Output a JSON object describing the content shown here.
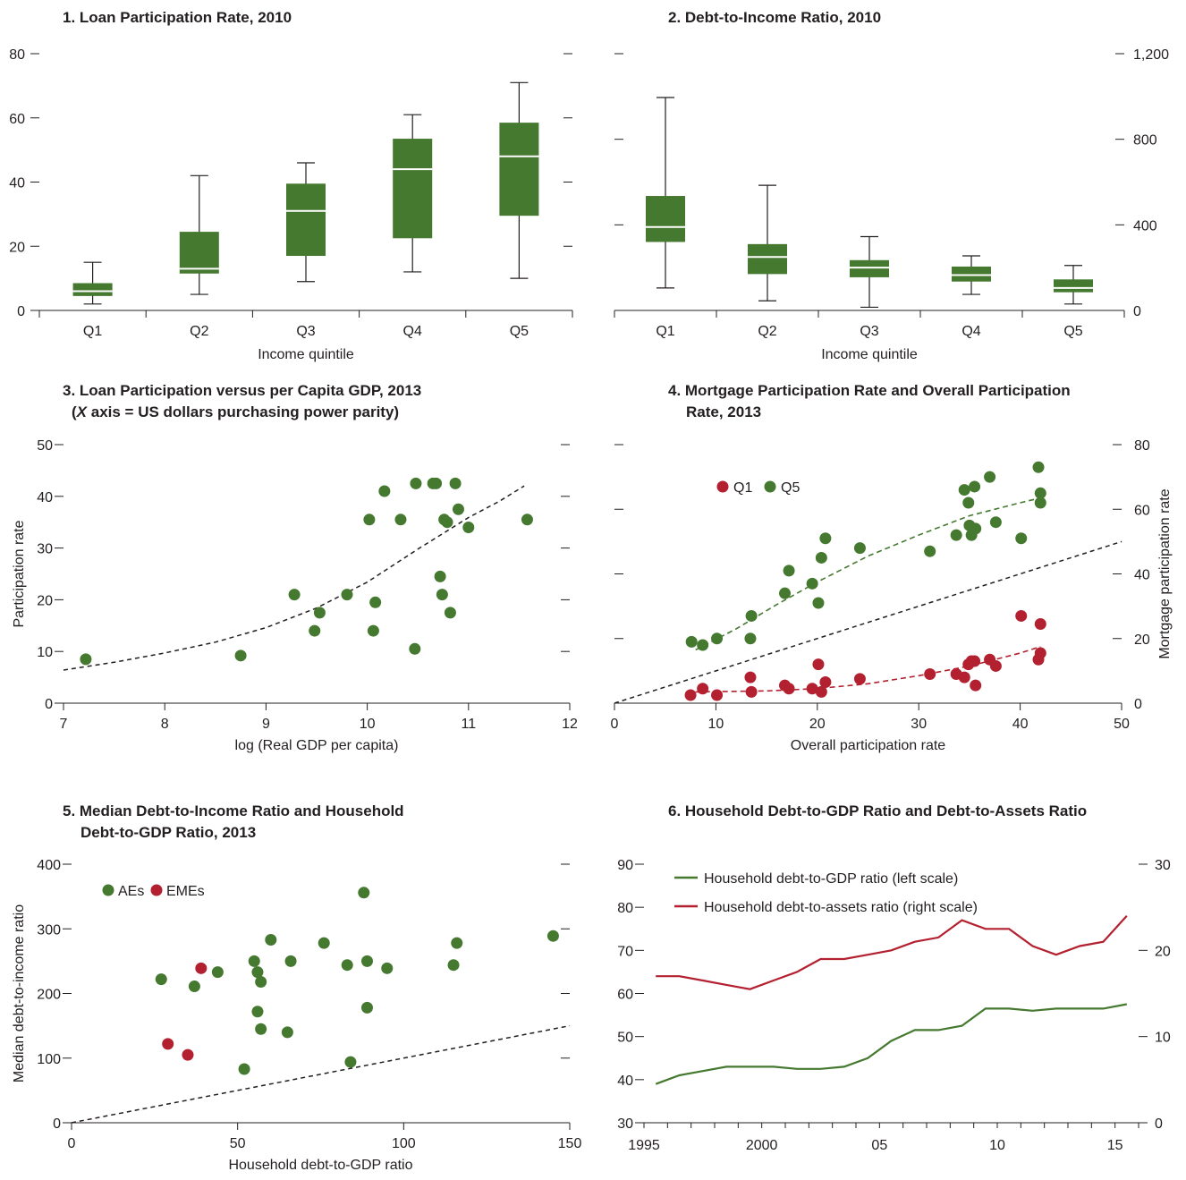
{
  "colors": {
    "green": "#44792f",
    "red": "#b3202f",
    "axis": "#231f20"
  },
  "chart_data": [
    {
      "id": "p1",
      "type": "box",
      "title": "1. Loan Participation Rate, 2010",
      "xlabel": "Income quintile",
      "ylim": [
        0,
        80
      ],
      "yticks": [
        "0",
        "20",
        "40",
        "60",
        "80"
      ],
      "categories": [
        "Q1",
        "Q2",
        "Q3",
        "Q4",
        "Q5"
      ],
      "boxes": [
        {
          "min": 2,
          "q1": 4.5,
          "median": 6,
          "q3": 8.5,
          "max": 15
        },
        {
          "min": 5,
          "q1": 11.5,
          "median": 13,
          "q3": 24.5,
          "max": 42
        },
        {
          "min": 9,
          "q1": 17,
          "median": 31,
          "q3": 39.5,
          "max": 46
        },
        {
          "min": 12,
          "q1": 22.5,
          "median": 44,
          "q3": 53.5,
          "max": 61
        },
        {
          "min": 10,
          "q1": 29.5,
          "median": 48,
          "q3": 58.5,
          "max": 71
        }
      ]
    },
    {
      "id": "p2",
      "type": "box",
      "title": "2. Debt-to-Income Ratio, 2010",
      "xlabel": "Income quintile",
      "ylim": [
        0,
        1200
      ],
      "yticks": [
        "0",
        "400",
        "800",
        "1,200"
      ],
      "categories": [
        "Q1",
        "Q2",
        "Q3",
        "Q4",
        "Q5"
      ],
      "boxes": [
        {
          "min": 105,
          "q1": 320,
          "median": 390,
          "q3": 535,
          "max": 995
        },
        {
          "min": 45,
          "q1": 170,
          "median": 250,
          "q3": 310,
          "max": 585
        },
        {
          "min": 15,
          "q1": 155,
          "median": 200,
          "q3": 235,
          "max": 345
        },
        {
          "min": 75,
          "q1": 135,
          "median": 165,
          "q3": 205,
          "max": 255
        },
        {
          "min": 30,
          "q1": 85,
          "median": 105,
          "q3": 145,
          "max": 210
        }
      ]
    },
    {
      "id": "p3",
      "type": "scatter",
      "title": "3. Loan Participation versus per Capita GDP, 2013",
      "title_line2_italic": "X",
      "title_line2": " axis = US dollars purchasing power parity)",
      "title_line2_prefix": "(",
      "xlabel": "log (Real GDP per capita)",
      "ylabel": "Participation rate",
      "xlim": [
        7,
        12
      ],
      "ylim": [
        0,
        50
      ],
      "xticks": [
        "7",
        "8",
        "9",
        "10",
        "11",
        "12"
      ],
      "yticks": [
        "0",
        "10",
        "20",
        "30",
        "40",
        "50"
      ],
      "points": [
        [
          7.22,
          8.5
        ],
        [
          8.75,
          9.2
        ],
        [
          9.28,
          21
        ],
        [
          9.48,
          14
        ],
        [
          9.53,
          17.5
        ],
        [
          9.8,
          21
        ],
        [
          10.02,
          35.5
        ],
        [
          10.06,
          14
        ],
        [
          10.08,
          19.5
        ],
        [
          10.17,
          41
        ],
        [
          10.33,
          35.5
        ],
        [
          10.47,
          10.5
        ],
        [
          10.48,
          42.5
        ],
        [
          10.65,
          42.5
        ],
        [
          10.68,
          42.5
        ],
        [
          10.72,
          24.5
        ],
        [
          10.74,
          21
        ],
        [
          10.76,
          35.5
        ],
        [
          10.79,
          35
        ],
        [
          10.82,
          17.5
        ],
        [
          10.87,
          42.5
        ],
        [
          10.9,
          37.5
        ],
        [
          11.0,
          34
        ],
        [
          11.58,
          35.5
        ]
      ],
      "trend": [
        [
          7,
          6.4
        ],
        [
          7.5,
          7.9
        ],
        [
          8,
          9.7
        ],
        [
          8.5,
          11.8
        ],
        [
          9,
          14.6
        ],
        [
          9.5,
          18.4
        ],
        [
          10,
          23.4
        ],
        [
          10.5,
          29.8
        ],
        [
          11,
          35.9
        ],
        [
          11.3,
          39.0
        ],
        [
          11.55,
          42.0
        ]
      ]
    },
    {
      "id": "p4",
      "type": "scatter",
      "title": "4. Mortgage Participation Rate and Overall Participation",
      "title_line2": "Rate, 2013",
      "xlabel": "Overall participation rate",
      "ylabel": "Mortgage participation rate",
      "xlim": [
        0,
        50
      ],
      "ylim": [
        0,
        80
      ],
      "xticks": [
        "0",
        "10",
        "20",
        "30",
        "40",
        "50"
      ],
      "yticks": [
        "0",
        "20",
        "40",
        "60",
        "80"
      ],
      "legend": [
        "Q1",
        "Q5"
      ],
      "series": [
        {
          "name": "Q1",
          "color": "red",
          "points": [
            [
              7.5,
              2.5
            ],
            [
              8.7,
              4.5
            ],
            [
              10.1,
              2.5
            ],
            [
              13.4,
              8
            ],
            [
              13.5,
              3.5
            ],
            [
              16.8,
              5.5
            ],
            [
              17.2,
              4.5
            ],
            [
              19.5,
              4.5
            ],
            [
              20.1,
              12
            ],
            [
              20.4,
              3.5
            ],
            [
              20.8,
              6.5
            ],
            [
              24.2,
              7.5
            ],
            [
              31.1,
              9
            ],
            [
              33.7,
              9
            ],
            [
              34.5,
              8
            ],
            [
              34.9,
              12
            ],
            [
              35.2,
              13
            ],
            [
              35.5,
              13
            ],
            [
              35.6,
              5.5
            ],
            [
              37.0,
              13.5
            ],
            [
              37.6,
              11.5
            ],
            [
              40.1,
              27
            ],
            [
              41.8,
              13.5
            ],
            [
              42.0,
              15.5
            ],
            [
              42.0,
              24.5
            ]
          ]
        },
        {
          "name": "Q5",
          "color": "green",
          "points": [
            [
              7.6,
              19
            ],
            [
              8.7,
              18
            ],
            [
              10.1,
              20
            ],
            [
              13.4,
              20
            ],
            [
              13.5,
              27
            ],
            [
              16.8,
              34
            ],
            [
              17.2,
              41
            ],
            [
              19.5,
              37
            ],
            [
              20.1,
              31
            ],
            [
              20.4,
              45
            ],
            [
              20.8,
              51
            ],
            [
              24.2,
              48
            ],
            [
              31.1,
              47
            ],
            [
              33.7,
              52
            ],
            [
              34.5,
              66
            ],
            [
              34.9,
              62
            ],
            [
              35.0,
              55
            ],
            [
              35.2,
              52
            ],
            [
              35.5,
              67
            ],
            [
              35.6,
              54
            ],
            [
              37.0,
              70
            ],
            [
              37.6,
              56
            ],
            [
              40.1,
              51
            ],
            [
              41.8,
              73
            ],
            [
              42.0,
              65
            ],
            [
              42.0,
              62
            ]
          ]
        }
      ],
      "trend_q5": [
        [
          8,
          16.5
        ],
        [
          12,
          23
        ],
        [
          16,
          30.5
        ],
        [
          20,
          37.5
        ],
        [
          25,
          45.5
        ],
        [
          30,
          52
        ],
        [
          35,
          58
        ],
        [
          40,
          62
        ],
        [
          42,
          63.5
        ]
      ],
      "trend_q1": [
        [
          8,
          3.5
        ],
        [
          15,
          3.8
        ],
        [
          20,
          4.5
        ],
        [
          25,
          6
        ],
        [
          30,
          8.5
        ],
        [
          35,
          11.5
        ],
        [
          40,
          15.5
        ],
        [
          42,
          17.5
        ]
      ],
      "reference": [
        [
          0,
          0
        ],
        [
          50,
          50
        ]
      ]
    },
    {
      "id": "p5",
      "type": "scatter",
      "title": "5. Median Debt-to-Income Ratio and Household",
      "title_line2": "Debt-to-GDP Ratio, 2013",
      "xlabel": "Household debt-to-GDP ratio",
      "ylabel": "Median debt-to-income ratio",
      "xlim": [
        0,
        150
      ],
      "ylim": [
        0,
        400
      ],
      "xticks": [
        "0",
        "50",
        "100",
        "150"
      ],
      "yticks": [
        "0",
        "100",
        "200",
        "300",
        "400"
      ],
      "legend": [
        "AEs",
        "EMEs"
      ],
      "series": [
        {
          "name": "AEs",
          "color": "green",
          "points": [
            [
              27,
              222
            ],
            [
              37,
              211
            ],
            [
              44,
              233
            ],
            [
              52,
              83
            ],
            [
              55,
              250
            ],
            [
              56,
              233
            ],
            [
              56,
              172
            ],
            [
              57,
              218
            ],
            [
              57,
              145
            ],
            [
              60,
              283
            ],
            [
              65,
              140
            ],
            [
              66,
              250
            ],
            [
              76,
              278
            ],
            [
              83,
              244
            ],
            [
              84,
              94
            ],
            [
              88,
              356
            ],
            [
              89,
              250
            ],
            [
              89,
              178
            ],
            [
              95,
              239
            ],
            [
              115,
              244
            ],
            [
              116,
              278
            ],
            [
              145,
              289
            ]
          ]
        },
        {
          "name": "EMEs",
          "color": "red",
          "points": [
            [
              29,
              122
            ],
            [
              35,
              105
            ],
            [
              39,
              239
            ]
          ]
        }
      ],
      "reference": [
        [
          0,
          0
        ],
        [
          150,
          150
        ]
      ]
    },
    {
      "id": "p6",
      "type": "line",
      "title": "6. Household Debt-to-GDP Ratio and Debt-to-Assets Ratio",
      "xlim": [
        1995,
        2016
      ],
      "ylim_left": [
        30,
        90
      ],
      "ylim_right": [
        0,
        30
      ],
      "xticks": [
        {
          "v": 1995,
          "label": "1995"
        },
        {
          "v": 2000,
          "label": "2000"
        },
        {
          "v": 2005,
          "label": "05"
        },
        {
          "v": 2010,
          "label": "10"
        },
        {
          "v": 2015,
          "label": "15"
        }
      ],
      "yticks_left": [
        "30",
        "40",
        "50",
        "60",
        "70",
        "80",
        "90"
      ],
      "yticks_right": [
        "0",
        "10",
        "20",
        "30"
      ],
      "x": [
        1995,
        1996,
        1997,
        1998,
        1999,
        2000,
        2001,
        2002,
        2003,
        2004,
        2005,
        2006,
        2007,
        2008,
        2009,
        2010,
        2011,
        2012,
        2013,
        2014,
        2015
      ],
      "series": [
        {
          "name": "Household debt-to-GDP ratio (left scale)",
          "color": "green",
          "axis": "left",
          "values": [
            39,
            41,
            42,
            43,
            43,
            43,
            42.5,
            42.5,
            43,
            45,
            49,
            51.5,
            51.5,
            52.5,
            56.5,
            56.5,
            56,
            56.5,
            56.5,
            56.5,
            57.5
          ]
        },
        {
          "name": "Household debt-to-assets ratio (right scale)",
          "color": "red",
          "axis": "right",
          "values": [
            17,
            17,
            16.5,
            16,
            15.5,
            16.5,
            17.5,
            19,
            19,
            19.5,
            20,
            21,
            21.5,
            23.5,
            22.5,
            22.5,
            20.5,
            19.5,
            20.5,
            21,
            24
          ]
        }
      ]
    }
  ]
}
